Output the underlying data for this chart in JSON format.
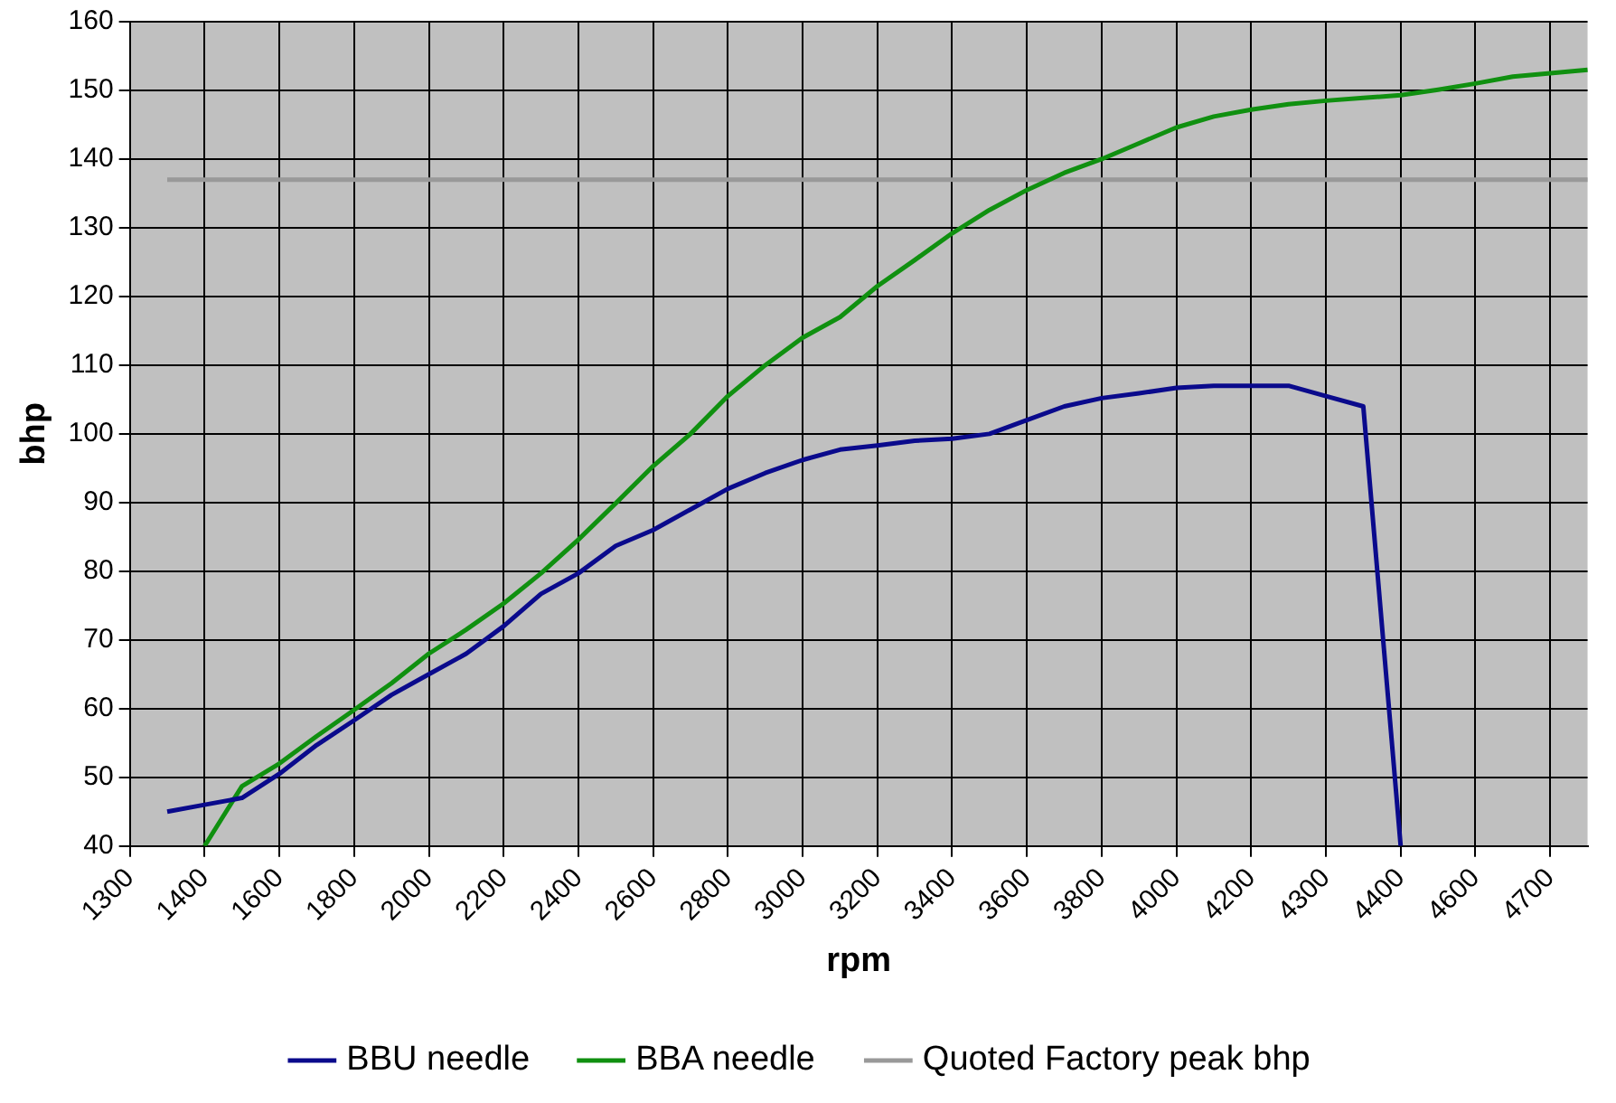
{
  "chart_data": {
    "type": "line",
    "xlabel": "rpm",
    "ylabel": "bhp",
    "categories": [
      "1300",
      null,
      "1400",
      null,
      "1600",
      null,
      "1800",
      null,
      "2000",
      null,
      "2200",
      null,
      "2400",
      null,
      "2600",
      null,
      "2800",
      null,
      "3000",
      null,
      "3200",
      null,
      "3400",
      null,
      "3600",
      null,
      "3800",
      null,
      "4000",
      null,
      "4200",
      null,
      "4300",
      null,
      "4400",
      null,
      "4600",
      null,
      "4700",
      null
    ],
    "series": [
      {
        "name": "BBU needle",
        "color": "#0a0a8c",
        "values": [
          null,
          45,
          46,
          47,
          50.5,
          54.7,
          58.3,
          62,
          65,
          68,
          72,
          76.7,
          79.7,
          83.7,
          86,
          89,
          92,
          94.3,
          96.2,
          97.7,
          98.3,
          99,
          99.3,
          100,
          102,
          104,
          105.2,
          105.9,
          106.7,
          107,
          107,
          107,
          105.5,
          104,
          40,
          null,
          null,
          null,
          null,
          null
        ]
      },
      {
        "name": "BBA needle",
        "color": "#109010",
        "values": [
          null,
          null,
          40,
          48.7,
          52,
          56,
          59.8,
          63.7,
          68,
          71.5,
          75.3,
          79.7,
          84.6,
          89.9,
          95.3,
          100,
          105.5,
          110,
          114,
          117,
          121.5,
          125.3,
          129.2,
          132.6,
          135.5,
          138,
          140,
          142.3,
          144.6,
          146.2,
          147.2,
          148,
          148.5,
          148.9,
          149.3,
          150.1,
          151,
          152,
          152.5,
          153
        ]
      },
      {
        "name": "Quoted Factory peak bhp",
        "color": "#999999",
        "values": [
          null,
          137,
          137,
          137,
          137,
          137,
          137,
          137,
          137,
          137,
          137,
          137,
          137,
          137,
          137,
          137,
          137,
          137,
          137,
          137,
          137,
          137,
          137,
          137,
          137,
          137,
          137,
          137,
          137,
          137,
          137,
          137,
          137,
          137,
          137,
          137,
          137,
          137,
          137,
          137
        ]
      }
    ],
    "ylim": [
      40,
      160
    ],
    "yticks": [
      40,
      50,
      60,
      70,
      80,
      90,
      100,
      110,
      120,
      130,
      140,
      150,
      160
    ],
    "grid": true,
    "legend": "bottom",
    "marker": "none",
    "line_style": "solid"
  }
}
